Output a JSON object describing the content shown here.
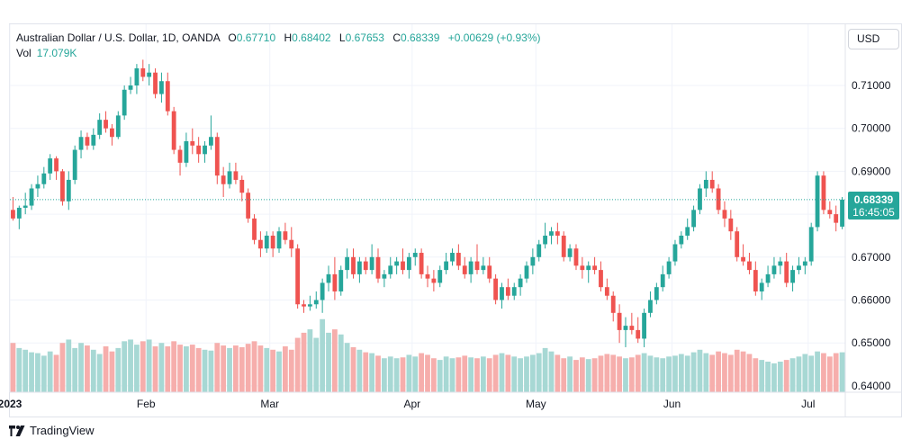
{
  "legend": {
    "symbol": "Australian Dollar / U.S. Dollar, 1D, OANDA",
    "open_label": "O",
    "open": "0.67710",
    "high_label": "H",
    "high": "0.68402",
    "low_label": "L",
    "low": "0.67653",
    "close_label": "C",
    "close": "0.68339",
    "change": "+0.00629 (+0.93%)",
    "vol_label": "Vol",
    "vol_value": "17.079K"
  },
  "currency": "USD",
  "last_price": {
    "price": "0.68339",
    "countdown": "16:45:05"
  },
  "branding": "TradingView",
  "colors": {
    "up": "#26a69a",
    "down": "#ef5350",
    "vol_up": "#a7d8d4",
    "vol_down": "#f6aeac",
    "grid": "#f0f3fa"
  },
  "chart_data": {
    "type": "candlestick",
    "y_ticks": [
      "0.71000",
      "0.70000",
      "0.69000",
      "0.68000",
      "0.67000",
      "0.66000",
      "0.65000",
      "0.64000"
    ],
    "ylim": [
      0.64,
      0.71
    ],
    "x_ticks": [
      "2023",
      "Feb",
      "Mar",
      "Apr",
      "May",
      "Jun",
      "Jul"
    ],
    "months": [
      {
        "label": "2023",
        "start": 0
      },
      {
        "label": "Feb",
        "start": 22
      },
      {
        "label": "Mar",
        "start": 42
      },
      {
        "label": "Apr",
        "start": 65
      },
      {
        "label": "May",
        "start": 85
      },
      {
        "label": "Jun",
        "start": 107
      },
      {
        "label": "Jul",
        "start": 129
      }
    ],
    "candles": [
      [
        0.681,
        0.684,
        0.6785,
        0.679,
        58
      ],
      [
        0.679,
        0.682,
        0.6765,
        0.6815,
        52
      ],
      [
        0.6815,
        0.685,
        0.68,
        0.682,
        50
      ],
      [
        0.682,
        0.687,
        0.681,
        0.686,
        47
      ],
      [
        0.686,
        0.689,
        0.684,
        0.687,
        46
      ],
      [
        0.687,
        0.691,
        0.686,
        0.6895,
        43
      ],
      [
        0.6895,
        0.694,
        0.688,
        0.693,
        48
      ],
      [
        0.693,
        0.6935,
        0.688,
        0.69,
        44
      ],
      [
        0.69,
        0.6905,
        0.682,
        0.683,
        58
      ],
      [
        0.683,
        0.69,
        0.681,
        0.688,
        62
      ],
      [
        0.688,
        0.696,
        0.687,
        0.695,
        52
      ],
      [
        0.695,
        0.6995,
        0.693,
        0.698,
        58
      ],
      [
        0.698,
        0.699,
        0.695,
        0.696,
        55
      ],
      [
        0.696,
        0.7,
        0.695,
        0.6985,
        50
      ],
      [
        0.6985,
        0.7035,
        0.6975,
        0.702,
        45
      ],
      [
        0.702,
        0.704,
        0.699,
        0.7,
        54
      ],
      [
        0.7,
        0.701,
        0.696,
        0.698,
        48
      ],
      [
        0.698,
        0.704,
        0.6975,
        0.703,
        52
      ],
      [
        0.703,
        0.71,
        0.702,
        0.709,
        60
      ],
      [
        0.709,
        0.712,
        0.708,
        0.71,
        62
      ],
      [
        0.71,
        0.715,
        0.708,
        0.714,
        56
      ],
      [
        0.714,
        0.716,
        0.711,
        0.712,
        60
      ],
      [
        0.712,
        0.715,
        0.71,
        0.713,
        62
      ],
      [
        0.713,
        0.714,
        0.707,
        0.708,
        54
      ],
      [
        0.708,
        0.713,
        0.706,
        0.711,
        58
      ],
      [
        0.711,
        0.713,
        0.703,
        0.704,
        54
      ],
      [
        0.704,
        0.705,
        0.694,
        0.695,
        60
      ],
      [
        0.695,
        0.696,
        0.689,
        0.692,
        56
      ],
      [
        0.692,
        0.699,
        0.691,
        0.697,
        54
      ],
      [
        0.697,
        0.7,
        0.694,
        0.696,
        56
      ],
      [
        0.696,
        0.698,
        0.692,
        0.694,
        52
      ],
      [
        0.694,
        0.697,
        0.692,
        0.696,
        50
      ],
      [
        0.696,
        0.703,
        0.695,
        0.698,
        49
      ],
      [
        0.698,
        0.699,
        0.687,
        0.689,
        58
      ],
      [
        0.689,
        0.691,
        0.684,
        0.687,
        55
      ],
      [
        0.687,
        0.692,
        0.686,
        0.69,
        52
      ],
      [
        0.69,
        0.692,
        0.687,
        0.688,
        55
      ],
      [
        0.688,
        0.689,
        0.683,
        0.685,
        53
      ],
      [
        0.685,
        0.686,
        0.678,
        0.679,
        57
      ],
      [
        0.679,
        0.68,
        0.673,
        0.674,
        60
      ],
      [
        0.674,
        0.676,
        0.67,
        0.672,
        55
      ],
      [
        0.672,
        0.676,
        0.671,
        0.675,
        52
      ],
      [
        0.675,
        0.676,
        0.67,
        0.672,
        50
      ],
      [
        0.672,
        0.677,
        0.671,
        0.676,
        48
      ],
      [
        0.676,
        0.678,
        0.673,
        0.674,
        54
      ],
      [
        0.674,
        0.677,
        0.67,
        0.672,
        50
      ],
      [
        0.672,
        0.673,
        0.658,
        0.659,
        64
      ],
      [
        0.659,
        0.66,
        0.657,
        0.6585,
        70
      ],
      [
        0.6585,
        0.661,
        0.6575,
        0.659,
        74
      ],
      [
        0.659,
        0.662,
        0.658,
        0.66,
        64
      ],
      [
        0.66,
        0.665,
        0.657,
        0.664,
        86
      ],
      [
        0.664,
        0.668,
        0.662,
        0.666,
        70
      ],
      [
        0.666,
        0.67,
        0.66,
        0.662,
        74
      ],
      [
        0.662,
        0.668,
        0.661,
        0.667,
        68
      ],
      [
        0.667,
        0.672,
        0.665,
        0.67,
        58
      ],
      [
        0.67,
        0.672,
        0.665,
        0.666,
        53
      ],
      [
        0.666,
        0.67,
        0.664,
        0.669,
        50
      ],
      [
        0.669,
        0.67,
        0.666,
        0.667,
        47
      ],
      [
        0.667,
        0.673,
        0.666,
        0.67,
        46
      ],
      [
        0.67,
        0.672,
        0.664,
        0.665,
        43
      ],
      [
        0.665,
        0.667,
        0.663,
        0.666,
        40
      ],
      [
        0.666,
        0.67,
        0.665,
        0.668,
        42
      ],
      [
        0.668,
        0.67,
        0.666,
        0.669,
        40
      ],
      [
        0.669,
        0.672,
        0.666,
        0.667,
        41
      ],
      [
        0.667,
        0.671,
        0.665,
        0.67,
        44
      ],
      [
        0.67,
        0.672,
        0.668,
        0.671,
        42
      ],
      [
        0.671,
        0.672,
        0.665,
        0.666,
        46
      ],
      [
        0.666,
        0.668,
        0.663,
        0.665,
        44
      ],
      [
        0.665,
        0.667,
        0.662,
        0.664,
        40
      ],
      [
        0.664,
        0.668,
        0.663,
        0.667,
        38
      ],
      [
        0.667,
        0.671,
        0.666,
        0.669,
        42
      ],
      [
        0.669,
        0.672,
        0.668,
        0.671,
        40
      ],
      [
        0.671,
        0.673,
        0.667,
        0.668,
        41
      ],
      [
        0.668,
        0.67,
        0.665,
        0.666,
        43
      ],
      [
        0.666,
        0.67,
        0.664,
        0.669,
        41
      ],
      [
        0.669,
        0.673,
        0.666,
        0.667,
        40
      ],
      [
        0.667,
        0.67,
        0.666,
        0.668,
        42
      ],
      [
        0.668,
        0.67,
        0.664,
        0.665,
        40
      ],
      [
        0.665,
        0.666,
        0.659,
        0.66,
        44
      ],
      [
        0.66,
        0.664,
        0.658,
        0.663,
        46
      ],
      [
        0.663,
        0.665,
        0.66,
        0.661,
        44
      ],
      [
        0.661,
        0.664,
        0.66,
        0.663,
        42
      ],
      [
        0.663,
        0.666,
        0.661,
        0.665,
        40
      ],
      [
        0.665,
        0.669,
        0.664,
        0.668,
        42
      ],
      [
        0.668,
        0.672,
        0.666,
        0.67,
        44
      ],
      [
        0.67,
        0.674,
        0.669,
        0.673,
        46
      ],
      [
        0.673,
        0.678,
        0.672,
        0.675,
        52
      ],
      [
        0.675,
        0.677,
        0.673,
        0.676,
        48
      ],
      [
        0.676,
        0.678,
        0.673,
        0.675,
        44
      ],
      [
        0.675,
        0.676,
        0.669,
        0.67,
        40
      ],
      [
        0.67,
        0.673,
        0.669,
        0.672,
        42
      ],
      [
        0.672,
        0.673,
        0.667,
        0.668,
        38
      ],
      [
        0.668,
        0.67,
        0.665,
        0.667,
        41
      ],
      [
        0.667,
        0.669,
        0.664,
        0.668,
        39
      ],
      [
        0.668,
        0.67,
        0.666,
        0.667,
        40
      ],
      [
        0.667,
        0.669,
        0.662,
        0.663,
        43
      ],
      [
        0.663,
        0.665,
        0.66,
        0.661,
        45
      ],
      [
        0.661,
        0.662,
        0.655,
        0.657,
        44
      ],
      [
        0.657,
        0.659,
        0.65,
        0.653,
        42
      ],
      [
        0.653,
        0.656,
        0.649,
        0.654,
        40
      ],
      [
        0.654,
        0.657,
        0.652,
        0.653,
        41
      ],
      [
        0.653,
        0.656,
        0.65,
        0.651,
        44
      ],
      [
        0.651,
        0.658,
        0.649,
        0.657,
        46
      ],
      [
        0.657,
        0.662,
        0.656,
        0.66,
        43
      ],
      [
        0.66,
        0.664,
        0.659,
        0.663,
        41
      ],
      [
        0.663,
        0.668,
        0.662,
        0.666,
        40
      ],
      [
        0.666,
        0.67,
        0.665,
        0.669,
        42
      ],
      [
        0.669,
        0.674,
        0.668,
        0.673,
        43
      ],
      [
        0.673,
        0.676,
        0.672,
        0.675,
        45
      ],
      [
        0.675,
        0.679,
        0.674,
        0.677,
        43
      ],
      [
        0.677,
        0.682,
        0.676,
        0.681,
        47
      ],
      [
        0.681,
        0.687,
        0.68,
        0.686,
        50
      ],
      [
        0.686,
        0.69,
        0.684,
        0.688,
        46
      ],
      [
        0.688,
        0.69,
        0.685,
        0.686,
        44
      ],
      [
        0.686,
        0.687,
        0.68,
        0.681,
        48
      ],
      [
        0.681,
        0.683,
        0.677,
        0.679,
        46
      ],
      [
        0.679,
        0.681,
        0.674,
        0.676,
        44
      ],
      [
        0.676,
        0.677,
        0.669,
        0.67,
        50
      ],
      [
        0.67,
        0.673,
        0.668,
        0.669,
        48
      ],
      [
        0.669,
        0.671,
        0.666,
        0.667,
        45
      ],
      [
        0.667,
        0.669,
        0.661,
        0.662,
        40
      ],
      [
        0.662,
        0.665,
        0.66,
        0.664,
        38
      ],
      [
        0.664,
        0.668,
        0.663,
        0.666,
        36
      ],
      [
        0.666,
        0.67,
        0.665,
        0.668,
        34
      ],
      [
        0.668,
        0.67,
        0.666,
        0.669,
        36
      ],
      [
        0.669,
        0.671,
        0.663,
        0.664,
        38
      ],
      [
        0.664,
        0.668,
        0.662,
        0.667,
        40
      ],
      [
        0.667,
        0.67,
        0.666,
        0.668,
        42
      ],
      [
        0.668,
        0.67,
        0.666,
        0.669,
        45
      ],
      [
        0.669,
        0.678,
        0.668,
        0.677,
        43
      ],
      [
        0.677,
        0.69,
        0.676,
        0.689,
        48
      ],
      [
        0.689,
        0.69,
        0.68,
        0.681,
        46
      ],
      [
        0.681,
        0.683,
        0.679,
        0.68,
        42
      ],
      [
        0.68,
        0.682,
        0.676,
        0.678,
        46
      ],
      [
        0.6771,
        0.684,
        0.6765,
        0.6834,
        47
      ]
    ]
  }
}
